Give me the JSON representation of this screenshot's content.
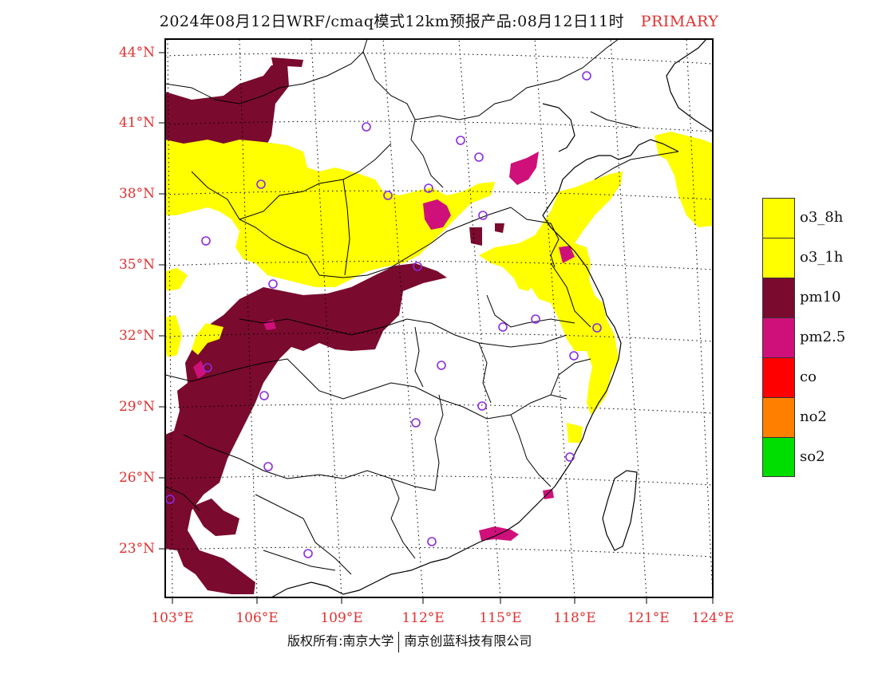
{
  "title": {
    "main": "2024年08月12日WRF/cmaq模式12km预报产品:08月12日11时",
    "tag": "PRIMARY"
  },
  "map": {
    "latitudes": [
      "44°N",
      "41°N",
      "38°N",
      "35°N",
      "32°N",
      "29°N",
      "26°N",
      "23°N"
    ],
    "longitudes": [
      "103°E",
      "106°E",
      "109°E",
      "112°E",
      "115°E",
      "118°E",
      "121°E",
      "124°E"
    ],
    "layer_colors": {
      "pm10": "#7a0a2e",
      "o3": "#ffff00",
      "pm2_5": "#d0107a"
    },
    "station_marker_color": "#8a2be2"
  },
  "legend": [
    {
      "label": "o3_8h",
      "color": "#ffff00"
    },
    {
      "label": "o3_1h",
      "color": "#ffff00"
    },
    {
      "label": "pm10",
      "color": "#7a0a2e"
    },
    {
      "label": "pm2.5",
      "color": "#d0107a"
    },
    {
      "label": "co",
      "color": "#ff0000"
    },
    {
      "label": "no2",
      "color": "#ff7f00"
    },
    {
      "label": "so2",
      "color": "#00dd00"
    }
  ],
  "footer": {
    "left": "版权所有:南京大学",
    "right": "南京创蓝科技有限公司"
  }
}
